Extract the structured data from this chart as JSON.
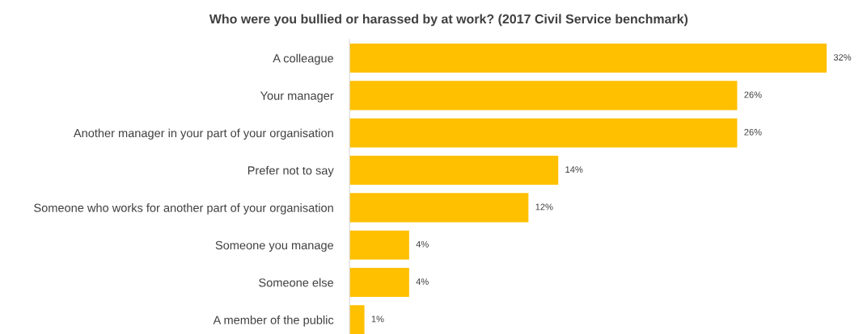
{
  "chart_data": {
    "type": "bar",
    "orientation": "horizontal",
    "title": "Who were you bullied or harassed by at work? (2017 Civil Service benchmark)",
    "categories": [
      "A colleague",
      "Your manager",
      "Another manager in your part of your organisation",
      "Prefer not to say",
      "Someone who works for another part of your organisation",
      "Someone you manage",
      "Someone else",
      "A member of the public"
    ],
    "values": [
      32,
      26,
      26,
      14,
      12,
      4,
      4,
      1
    ],
    "value_labels": [
      "32%",
      "26%",
      "26%",
      "14%",
      "12%",
      "4%",
      "4%",
      "1%"
    ],
    "color": "#ffc000",
    "grid": false,
    "legend": false,
    "tick_labels": "y"
  }
}
